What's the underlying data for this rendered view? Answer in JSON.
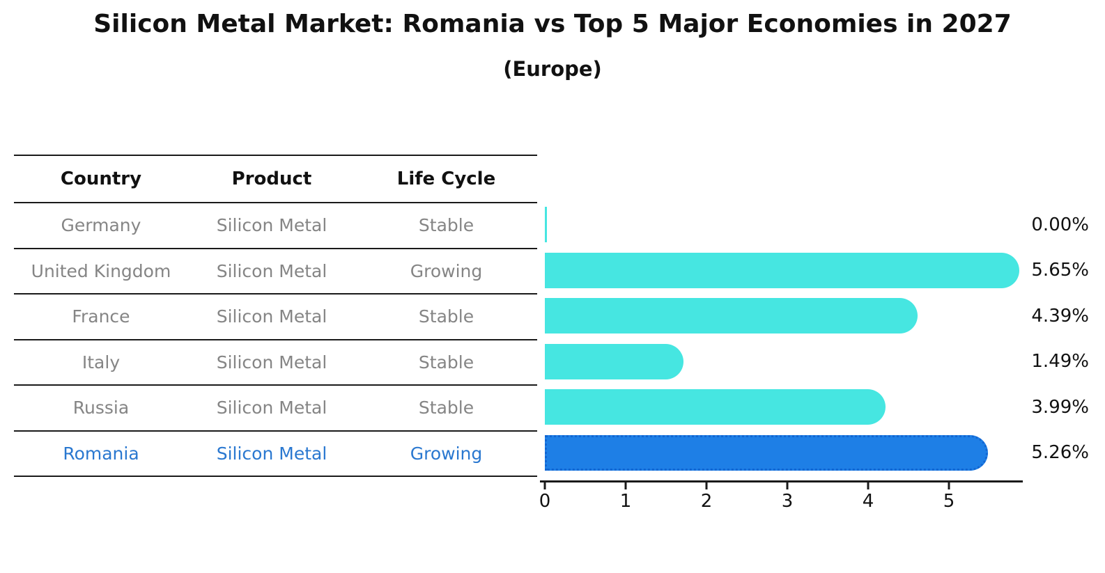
{
  "title": "Silicon Metal Market: Romania vs Top 5 Major Economies in 2027",
  "subtitle": "(Europe)",
  "table": {
    "headers": [
      "Country",
      "Product",
      "Life Cycle"
    ],
    "rows": [
      {
        "country": "Germany",
        "product": "Silicon Metal",
        "life_cycle": "Stable"
      },
      {
        "country": "United Kingdom",
        "product": "Silicon Metal",
        "life_cycle": "Growing"
      },
      {
        "country": "France",
        "product": "Silicon Metal",
        "life_cycle": "Stable"
      },
      {
        "country": "Italy",
        "product": "Silicon Metal",
        "life_cycle": "Stable"
      },
      {
        "country": "Russia",
        "product": "Silicon Metal",
        "life_cycle": "Stable"
      },
      {
        "country": "Romania",
        "product": "Silicon Metal",
        "life_cycle": "Growing"
      }
    ],
    "highlighted_row": "Romania"
  },
  "chart_data": {
    "type": "bar",
    "orientation": "horizontal",
    "categories": [
      "Germany",
      "United Kingdom",
      "France",
      "Italy",
      "Russia",
      "Romania"
    ],
    "values": [
      0.0,
      5.65,
      4.39,
      1.49,
      3.99,
      5.26
    ],
    "value_labels": [
      "0.00%",
      "5.65%",
      "4.39%",
      "1.49%",
      "3.99%",
      "5.26%"
    ],
    "xticks": [
      "0",
      "1",
      "2",
      "3",
      "4",
      "5"
    ],
    "xlim": [
      0,
      5.9
    ],
    "grid": false,
    "legend": false,
    "bar_color": "#46E6E1",
    "highlight_color": "#1E7FE6",
    "highlight_border_color": "#1266D2",
    "highlight_index": 5,
    "highlight_category": "Romania"
  },
  "colors": {
    "text": "#111111",
    "text_muted": "#858585",
    "highlight_text": "#2A78D0",
    "line": "#1a1a1a"
  }
}
